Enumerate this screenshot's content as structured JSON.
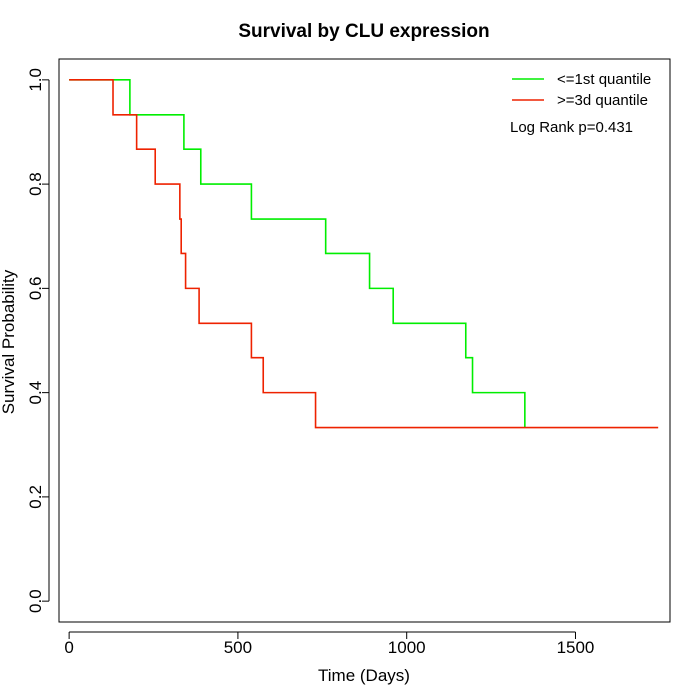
{
  "chart_data": {
    "type": "line",
    "title": "Survival by CLU expression",
    "xlabel": "Time (Days)",
    "ylabel": "Survival Probability",
    "xlim": [
      -30,
      1780
    ],
    "ylim": [
      -0.04,
      1.04
    ],
    "x_ticks": [
      0,
      500,
      1000,
      1500
    ],
    "y_ticks": [
      0.0,
      0.2,
      0.4,
      0.6,
      0.8,
      1.0
    ],
    "x_tick_labels": [
      "0",
      "500",
      "1000",
      "1500"
    ],
    "y_tick_labels": [
      "0.0",
      "0.2",
      "0.4",
      "0.6",
      "0.8",
      "1.0"
    ],
    "grid": false,
    "legend_position": "top-right",
    "annotation": "Log Rank p=0.431",
    "series": [
      {
        "name": "<=1st quantile",
        "color": "#00ee00",
        "step": true,
        "x": [
          0,
          180,
          340,
          390,
          540,
          760,
          890,
          960,
          1175,
          1195,
          1350
        ],
        "y": [
          1.0,
          0.933,
          0.867,
          0.8,
          0.733,
          0.667,
          0.6,
          0.533,
          0.467,
          0.4,
          0.333
        ]
      },
      {
        "name": ">=3d quantile",
        "color": "#ee2200",
        "step": true,
        "x": [
          0,
          130,
          200,
          255,
          328,
          332,
          345,
          385,
          540,
          575,
          730,
          1745
        ],
        "y": [
          1.0,
          0.933,
          0.867,
          0.8,
          0.733,
          0.667,
          0.6,
          0.533,
          0.467,
          0.4,
          0.333,
          0.333
        ]
      }
    ]
  }
}
